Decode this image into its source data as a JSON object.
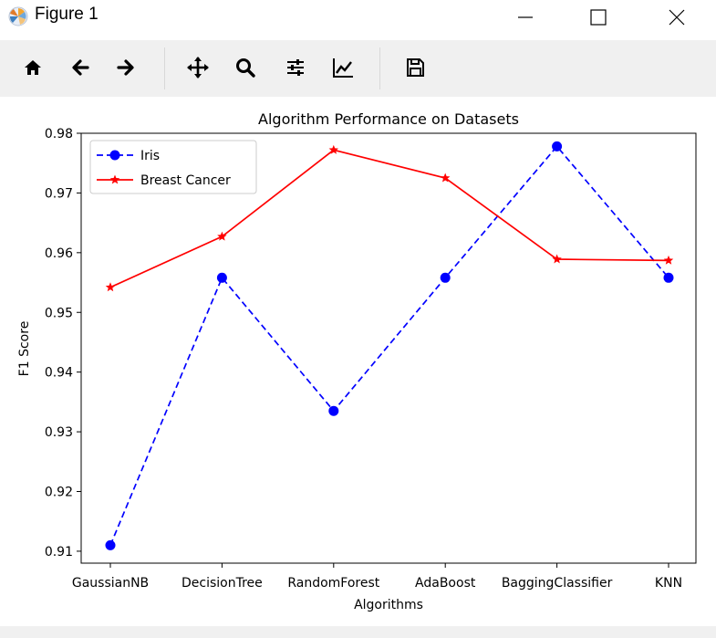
{
  "window": {
    "title": "Figure 1",
    "icons": {
      "app": "matplotlib-logo-icon",
      "minimize": "minimize-icon",
      "maximize": "maximize-icon",
      "close": "close-icon"
    }
  },
  "toolbar": {
    "items": [
      {
        "name": "home-button",
        "icon": "home-icon"
      },
      {
        "name": "back-button",
        "icon": "arrow-left-icon"
      },
      {
        "name": "forward-button",
        "icon": "arrow-right-icon"
      },
      {
        "name": "pan-button",
        "icon": "move-arrows-icon"
      },
      {
        "name": "zoom-button",
        "icon": "magnifier-icon"
      },
      {
        "name": "subplots-button",
        "icon": "sliders-icon"
      },
      {
        "name": "edit-axis-button",
        "icon": "line-chart-icon"
      },
      {
        "name": "save-button",
        "icon": "floppy-disk-icon"
      }
    ]
  },
  "chart_data": {
    "type": "line",
    "title": "Algorithm Performance on Datasets",
    "xlabel": "Algorithms",
    "ylabel": "F1 Score",
    "categories": [
      "GaussianNB",
      "DecisionTree",
      "RandomForest",
      "AdaBoost",
      "BaggingClassifier",
      "KNN"
    ],
    "yticks": [
      "0.91",
      "0.92",
      "0.93",
      "0.94",
      "0.95",
      "0.96",
      "0.97",
      "0.98"
    ],
    "ylim": [
      0.908,
      0.98
    ],
    "grid": false,
    "legend_position": "top-left",
    "series": [
      {
        "name": "Iris",
        "values": [
          0.911,
          0.9558,
          0.9335,
          0.9558,
          0.9778,
          0.9558
        ],
        "color": "#0000ff",
        "linestyle": "dashed",
        "marker": "circle"
      },
      {
        "name": "Breast Cancer",
        "values": [
          0.9542,
          0.9627,
          0.9772,
          0.9725,
          0.9589,
          0.9587
        ],
        "color": "#ff0000",
        "linestyle": "solid",
        "marker": "star"
      }
    ]
  }
}
